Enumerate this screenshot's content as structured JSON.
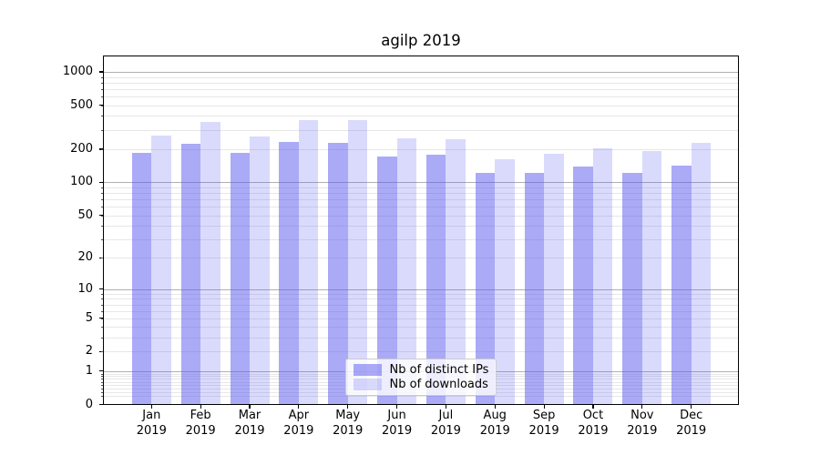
{
  "chart_data": {
    "type": "bar",
    "title": "agilp 2019",
    "categories": [
      "Jan",
      "Feb",
      "Mar",
      "Apr",
      "May",
      "Jun",
      "Jul",
      "Aug",
      "Sep",
      "Oct",
      "Nov",
      "Dec"
    ],
    "category_year": "2019",
    "series": [
      {
        "name": "Nb of distinct IPs",
        "color": "rgba(85,85,240,0.5)",
        "values": [
          186,
          225,
          184,
          231,
          230,
          173,
          178,
          123,
          122,
          139,
          123,
          142
        ]
      },
      {
        "name": "Nb of downloads",
        "color": "rgba(85,85,240,0.22)",
        "values": [
          265,
          355,
          263,
          366,
          366,
          251,
          245,
          163,
          181,
          205,
          192,
          230
        ]
      }
    ],
    "xlabel": "",
    "ylabel": "",
    "y_scale": "log10(1+value)",
    "ylim": [
      0,
      1415
    ],
    "y_ticks": [
      1000,
      500,
      200,
      100,
      50,
      20,
      10,
      5,
      2,
      1,
      0
    ],
    "y_major_grid": [
      1,
      10,
      100,
      1000
    ],
    "y_minor_grid": [
      0.2,
      0.3,
      0.4,
      0.5,
      0.6,
      0.7,
      0.8,
      0.9,
      2,
      3,
      4,
      5,
      6,
      7,
      8,
      9,
      20,
      30,
      40,
      50,
      60,
      70,
      80,
      90,
      200,
      300,
      400,
      500,
      600,
      700,
      800,
      900
    ],
    "grid": true,
    "legend_position": "bottom-center",
    "colors": {
      "major_grid": "#b0b0b0",
      "minor_grid": "#e7e7e7",
      "frame": "#000000",
      "text": "#000000",
      "legend_border": "#cccccc",
      "legend_bg": "rgba(255,255,255,0.8)"
    }
  }
}
